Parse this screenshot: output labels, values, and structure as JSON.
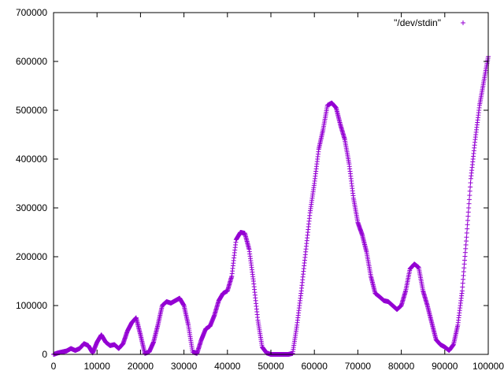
{
  "chart_data": {
    "type": "scatter",
    "title": "",
    "xlabel": "",
    "ylabel": "",
    "xlim": [
      0,
      100000
    ],
    "ylim": [
      0,
      700000
    ],
    "grid": false,
    "legend_position": "top-right",
    "x_ticks": [
      "0",
      "10000",
      "20000",
      "30000",
      "40000",
      "50000",
      "60000",
      "70000",
      "80000",
      "90000",
      "100000"
    ],
    "y_ticks": [
      "0",
      "100000",
      "200000",
      "300000",
      "400000",
      "500000",
      "600000",
      "700000"
    ],
    "series": [
      {
        "name": "\"/dev/stdin\"",
        "color": "#9400d3",
        "marker": "plus",
        "x": [
          0,
          1000,
          2000,
          3000,
          4000,
          5000,
          6000,
          7000,
          8000,
          9000,
          10000,
          11000,
          12000,
          13000,
          14000,
          15000,
          16000,
          17000,
          18000,
          19000,
          20000,
          21000,
          22000,
          23000,
          24000,
          25000,
          26000,
          27000,
          28000,
          29000,
          30000,
          31000,
          32000,
          33000,
          34000,
          35000,
          36000,
          37000,
          38000,
          39000,
          40000,
          41000,
          42000,
          43000,
          44000,
          45000,
          46000,
          47000,
          48000,
          49000,
          50000,
          51000,
          52000,
          53000,
          54000,
          55000,
          56000,
          57000,
          58000,
          59000,
          60000,
          61000,
          62000,
          63000,
          64000,
          65000,
          66000,
          67000,
          68000,
          69000,
          70000,
          71000,
          72000,
          73000,
          74000,
          75000,
          76000,
          77000,
          78000,
          79000,
          80000,
          81000,
          82000,
          83000,
          84000,
          85000,
          86000,
          87000,
          88000,
          89000,
          90000,
          91000,
          92000,
          93000,
          94000,
          95000,
          96000,
          97000,
          98000,
          99000,
          100000
        ],
        "y": [
          0,
          3000,
          5000,
          7000,
          12000,
          8000,
          12000,
          22000,
          18000,
          3000,
          25000,
          40000,
          25000,
          18000,
          20000,
          12000,
          22000,
          48000,
          65000,
          75000,
          40000,
          2000,
          5000,
          25000,
          60000,
          100000,
          108000,
          105000,
          110000,
          115000,
          100000,
          60000,
          5000,
          2000,
          30000,
          52000,
          58000,
          80000,
          110000,
          125000,
          130000,
          160000,
          235000,
          250000,
          248000,
          215000,
          150000,
          70000,
          15000,
          3000,
          0,
          0,
          0,
          0,
          0,
          2000,
          60000,
          130000,
          210000,
          290000,
          350000,
          420000,
          460000,
          510000,
          515000,
          505000,
          470000,
          440000,
          390000,
          320000,
          270000,
          245000,
          210000,
          160000,
          125000,
          118000,
          110000,
          108000,
          100000,
          92000,
          100000,
          130000,
          175000,
          185000,
          178000,
          130000,
          100000,
          65000,
          30000,
          20000,
          15000,
          8000,
          20000,
          60000,
          130000,
          240000,
          360000,
          440000,
          510000,
          560000,
          610000
        ]
      }
    ]
  }
}
